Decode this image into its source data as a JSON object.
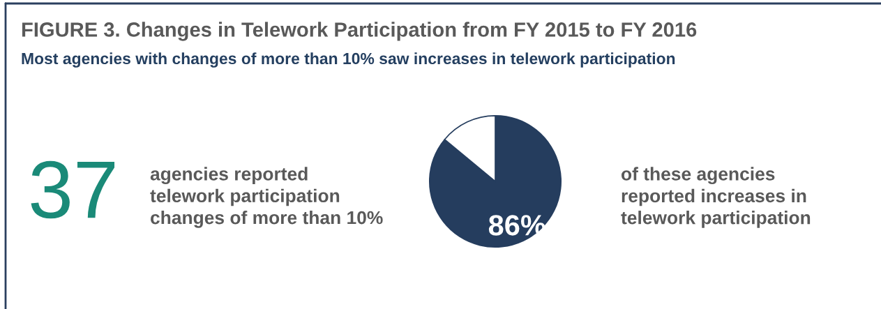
{
  "chart_data": {
    "type": "pie",
    "title": "FIGURE 3. Changes in Telework Participation from FY 2015 to FY 2016",
    "subtitle": "Most agencies with changes of more than 10% saw increases in telework participation",
    "categories": [
      null,
      null
    ],
    "values": [
      86,
      14
    ],
    "colors": [
      "#253d5e",
      "#ffffff"
    ],
    "value_labels": [
      "86%",
      null
    ],
    "annotations": [
      "37",
      "agencies reported\ntelework participation\nchanges of more than 10%",
      "of these agencies\nreported increases in\ntelework participation"
    ]
  }
}
